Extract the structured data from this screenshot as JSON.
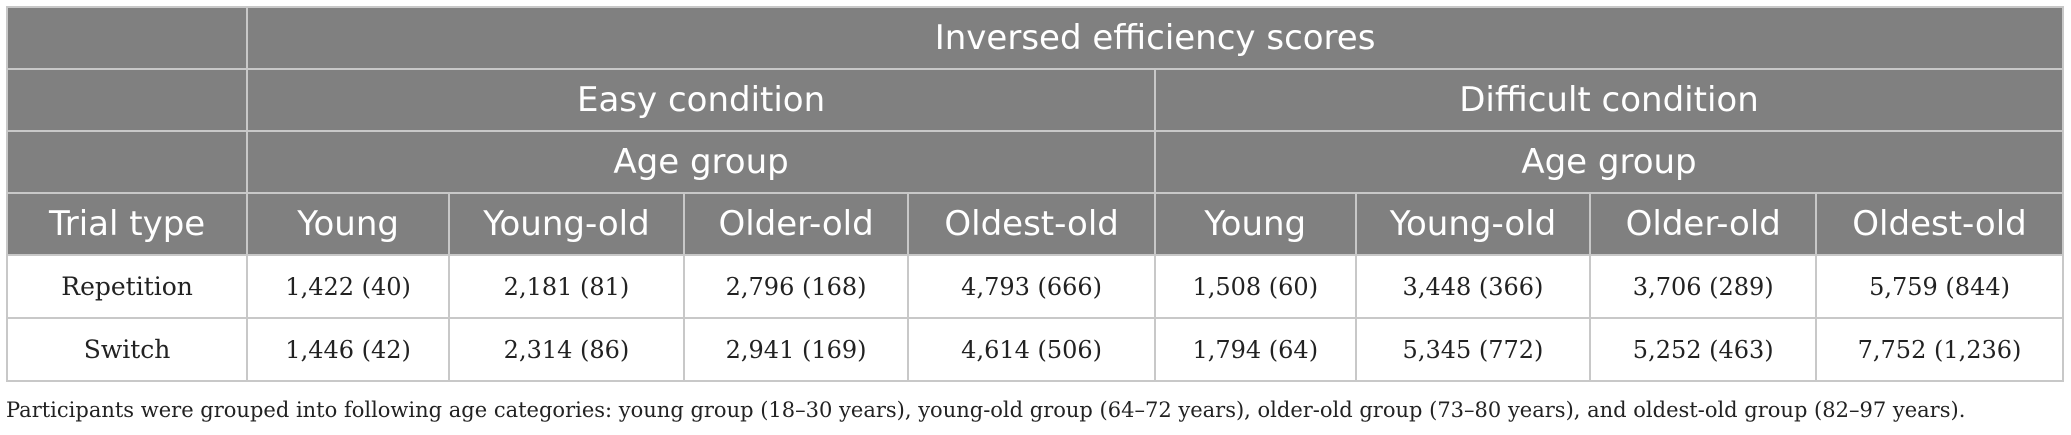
{
  "table": {
    "title": "Inversed efficiency scores",
    "conditions": [
      "Easy condition",
      "Difficult condition"
    ],
    "age_group_label": "Age group",
    "stub_header": "Trial type",
    "age_groups": [
      "Young",
      "Young-old",
      "Older-old",
      "Oldest-old"
    ],
    "rows": [
      {
        "label": "Repetition",
        "easy": [
          "1,422 (40)",
          "2,181 (81)",
          "2,796 (168)",
          "4,793 (666)"
        ],
        "difficult": [
          "1,508 (60)",
          "3,448 (366)",
          "3,706 (289)",
          "5,759 (844)"
        ]
      },
      {
        "label": "Switch",
        "easy": [
          "1,446 (42)",
          "2,314 (86)",
          "2,941 (169)",
          "4,614 (506)"
        ],
        "difficult": [
          "1,794 (64)",
          "5,345 (772)",
          "5,252 (463)",
          "7,752 (1,236)"
        ]
      }
    ]
  },
  "footnote": "Participants were grouped into following age categories: young group (18–30 years), young-old group (64–72 years), older-old group (73–80 years), and oldest-old group (82–97 years)."
}
